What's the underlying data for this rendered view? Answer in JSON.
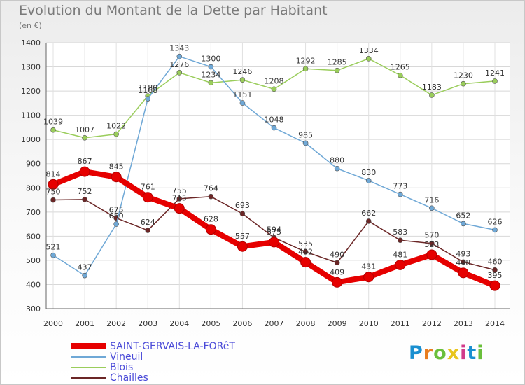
{
  "chart_data": {
    "type": "line",
    "title": "Evolution du Montant de la Dette par Habitant",
    "subtitle": "(en €)",
    "xlabel": "",
    "ylabel": "",
    "ylim": [
      300,
      1400
    ],
    "yticks": [
      300,
      400,
      500,
      600,
      700,
      800,
      900,
      1000,
      1100,
      1200,
      1300,
      1400
    ],
    "x": [
      "2000",
      "2001",
      "2002",
      "2003",
      "2004",
      "2005",
      "2006",
      "2007",
      "2008",
      "2009",
      "2010",
      "2011",
      "2012",
      "2013",
      "2014"
    ],
    "grid": true,
    "legend_position": "bottom-left",
    "series": [
      {
        "name": "SAINT-GERVAIS-LA-FORêT",
        "color": "#e60000",
        "values": [
          814,
          867,
          845,
          761,
          715,
          628,
          557,
          575,
          492,
          409,
          431,
          481,
          523,
          448,
          395
        ]
      },
      {
        "name": "Vineuil",
        "color": "#6fa8d6",
        "values": [
          521,
          437,
          650,
          1168,
          1343,
          1300,
          1151,
          1048,
          985,
          880,
          830,
          773,
          716,
          652,
          626
        ]
      },
      {
        "name": "Blois",
        "color": "#9acd5b",
        "values": [
          1039,
          1007,
          1022,
          1180,
          1276,
          1234,
          1246,
          1208,
          1292,
          1285,
          1334,
          1265,
          1183,
          1230,
          1241
        ]
      },
      {
        "name": "Chailles",
        "color": "#6b2626",
        "values": [
          750,
          752,
          675,
          624,
          755,
          764,
          693,
          594,
          535,
          490,
          662,
          583,
          570,
          493,
          460
        ]
      }
    ]
  },
  "logo": {
    "letters": [
      "P",
      "r",
      "o",
      "x",
      "i",
      "t",
      "i"
    ],
    "colors": [
      "#1a8fd0",
      "#e87d1e",
      "#6abf3b",
      "#e8c51e",
      "#d23b8a",
      "#1a8fd0",
      "#6abf3b"
    ]
  }
}
